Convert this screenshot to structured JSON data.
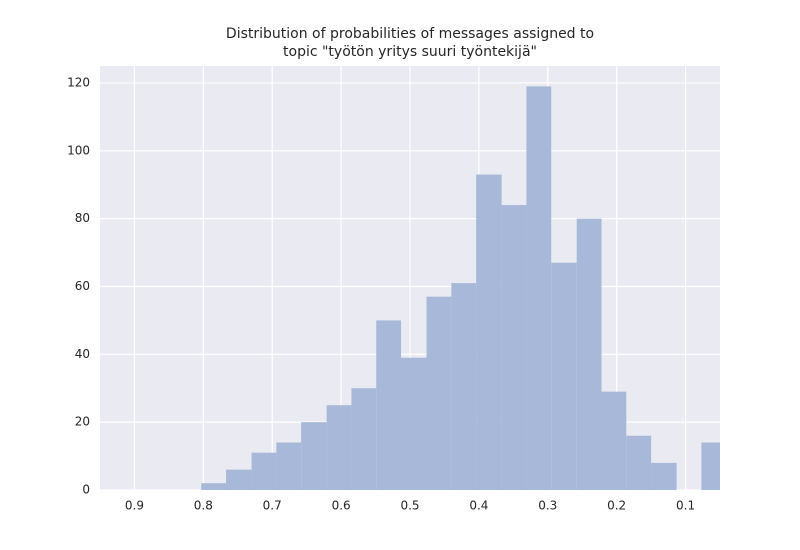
{
  "chart_data": {
    "type": "histogram",
    "title": [
      "Distribution of probabilities of messages assigned to",
      "topic \"työtön yritys suuri työntekijä\""
    ],
    "bins": [
      0.803,
      0.767,
      0.73,
      0.694,
      0.658,
      0.621,
      0.585,
      0.549,
      0.513,
      0.476,
      0.44,
      0.404,
      0.367,
      0.331,
      0.295,
      0.258,
      0.222,
      0.186,
      0.15,
      0.113,
      0.077,
      0.041
    ],
    "values": [
      2,
      6,
      11,
      14,
      20,
      25,
      30,
      50,
      39,
      57,
      61,
      93,
      84,
      119,
      67,
      80,
      29,
      16,
      8,
      0,
      14
    ],
    "color": "#a8b8d8",
    "xlim": [
      0.95,
      0.05
    ],
    "xticks": [
      0.9,
      0.8,
      0.7,
      0.6,
      0.5,
      0.4,
      0.3,
      0.2,
      0.1
    ],
    "ylim": [
      0,
      125
    ],
    "yticks": [
      0,
      20,
      40,
      60,
      80,
      100,
      120
    ],
    "grid": true
  }
}
